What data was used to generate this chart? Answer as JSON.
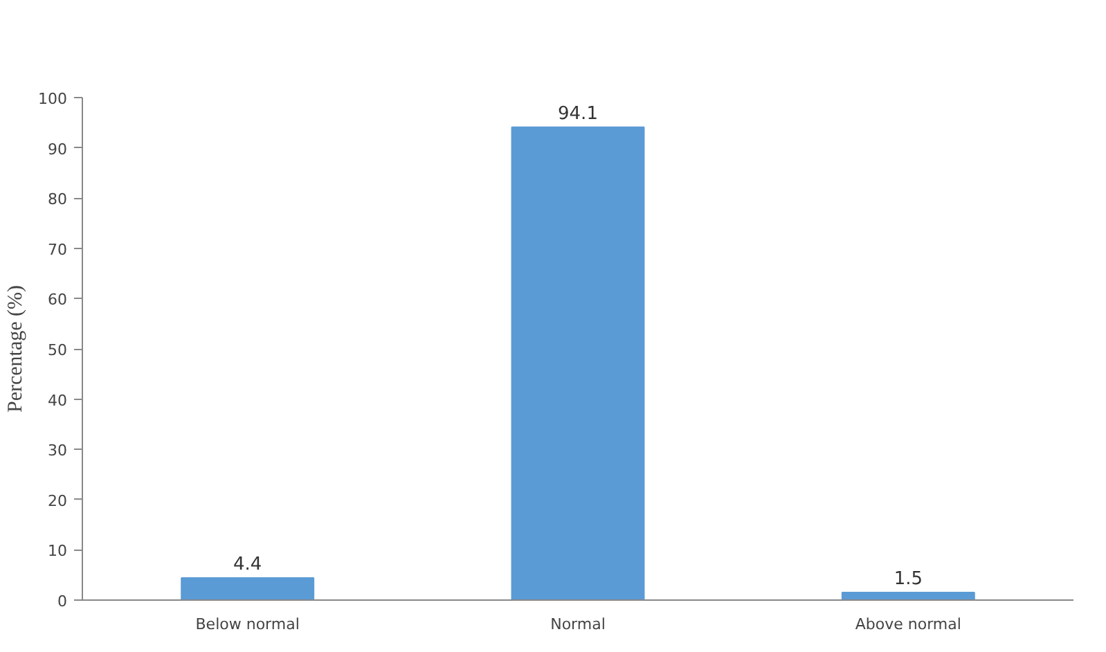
{
  "chart_data": {
    "type": "bar",
    "ylabel": "Percentage (%)",
    "categories": [
      "Below normal",
      "Normal",
      "Above normal"
    ],
    "values": [
      4.4,
      94.1,
      1.5
    ],
    "color": "#5b9bd5",
    "ylim": [
      0,
      100
    ],
    "yticks": [
      0,
      10,
      20,
      30,
      40,
      50,
      60,
      70,
      80,
      90,
      100
    ],
    "data_labels": true,
    "grid": false
  }
}
